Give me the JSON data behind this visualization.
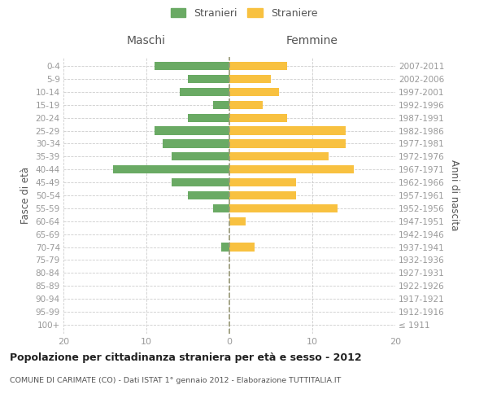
{
  "age_groups": [
    "100+",
    "95-99",
    "90-94",
    "85-89",
    "80-84",
    "75-79",
    "70-74",
    "65-69",
    "60-64",
    "55-59",
    "50-54",
    "45-49",
    "40-44",
    "35-39",
    "30-34",
    "25-29",
    "20-24",
    "15-19",
    "10-14",
    "5-9",
    "0-4"
  ],
  "birth_years": [
    "≤ 1911",
    "1912-1916",
    "1917-1921",
    "1922-1926",
    "1927-1931",
    "1932-1936",
    "1937-1941",
    "1942-1946",
    "1947-1951",
    "1952-1956",
    "1957-1961",
    "1962-1966",
    "1967-1971",
    "1972-1976",
    "1977-1981",
    "1982-1986",
    "1987-1991",
    "1992-1996",
    "1997-2001",
    "2002-2006",
    "2007-2011"
  ],
  "males": [
    0,
    0,
    0,
    0,
    0,
    0,
    1,
    0,
    0,
    2,
    5,
    7,
    14,
    7,
    8,
    9,
    5,
    2,
    6,
    5,
    9
  ],
  "females": [
    0,
    0,
    0,
    0,
    0,
    0,
    3,
    0,
    2,
    13,
    8,
    8,
    15,
    12,
    14,
    14,
    7,
    4,
    6,
    5,
    7
  ],
  "male_color": "#6aaa64",
  "female_color": "#f8c140",
  "male_label": "Stranieri",
  "female_label": "Straniere",
  "title": "Popolazione per cittadinanza straniera per età e sesso - 2012",
  "subtitle": "COMUNE DI CARIMATE (CO) - Dati ISTAT 1° gennaio 2012 - Elaborazione TUTTITALIA.IT",
  "ylabel_left": "Fasce di età",
  "ylabel_right": "Anni di nascita",
  "xlabel_left": "Maschi",
  "xlabel_right": "Femmine",
  "xlim": 20,
  "background_color": "#ffffff",
  "grid_color": "#cccccc",
  "dashed_line_color": "#999977",
  "tick_color": "#999999",
  "label_color": "#555555"
}
